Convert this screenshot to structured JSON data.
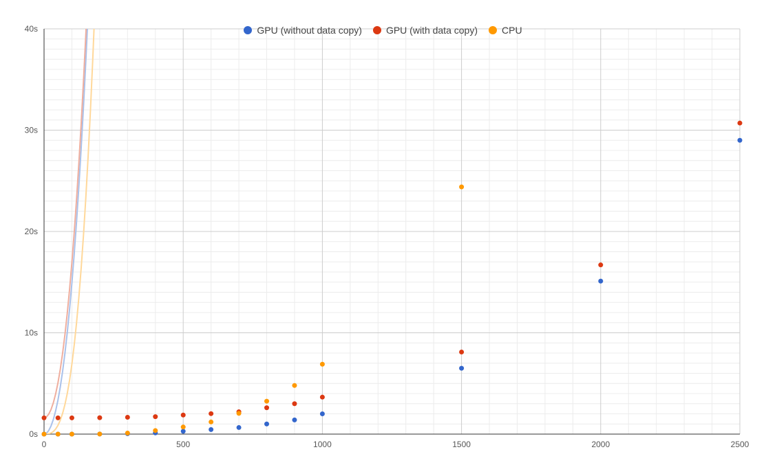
{
  "chart_data": {
    "type": "line",
    "title": "",
    "xlabel": "",
    "ylabel": "",
    "xlim": [
      0,
      2500
    ],
    "ylim": [
      0,
      40
    ],
    "x_ticks": [
      0,
      500,
      1000,
      1500,
      2000,
      2500
    ],
    "y_ticks": [
      0,
      10,
      20,
      30,
      40
    ],
    "y_tick_labels": [
      "0s",
      "10s",
      "20s",
      "30s",
      "40s"
    ],
    "grid": true,
    "legend_position": "top-center",
    "series": [
      {
        "name": "GPU (without data copy)",
        "color": "#3366cc",
        "trend_color": "#a9c1ea",
        "x": [
          0,
          50,
          100,
          200,
          300,
          400,
          500,
          600,
          700,
          800,
          900,
          1000,
          1500,
          2000,
          2500
        ],
        "y": [
          0.0,
          0.0,
          0.0,
          0.01,
          0.04,
          0.12,
          0.28,
          0.45,
          0.65,
          1.0,
          1.4,
          2.0,
          6.5,
          15.1,
          29.0
        ],
        "trend": [
          0,
          0.0,
          0.0012,
          2.9e-06
        ]
      },
      {
        "name": "GPU (with data copy)",
        "color": "#dc3912",
        "trend_color": "#efae9e",
        "x": [
          0,
          50,
          100,
          200,
          300,
          400,
          500,
          600,
          700,
          800,
          900,
          1000,
          1500,
          2000,
          2500
        ],
        "y": [
          1.6,
          1.6,
          1.6,
          1.62,
          1.66,
          1.72,
          1.88,
          2.02,
          2.2,
          2.6,
          3.0,
          3.65,
          8.1,
          16.7,
          30.7
        ],
        "trend": [
          1.6,
          0.0,
          0.00124,
          2.922e-06
        ]
      },
      {
        "name": "CPU",
        "color": "#ff9900",
        "trend_color": "#ffd89a",
        "x": [
          0,
          50,
          100,
          200,
          300,
          400,
          500,
          600,
          700,
          800,
          900,
          1000,
          1500
        ],
        "y": [
          0.0,
          0.0,
          0.0,
          0.01,
          0.1,
          0.35,
          0.7,
          1.2,
          2.05,
          3.25,
          4.8,
          6.9,
          24.4
        ],
        "trend": [
          0,
          0.0,
          0.0,
          6.9e-06
        ]
      }
    ]
  }
}
